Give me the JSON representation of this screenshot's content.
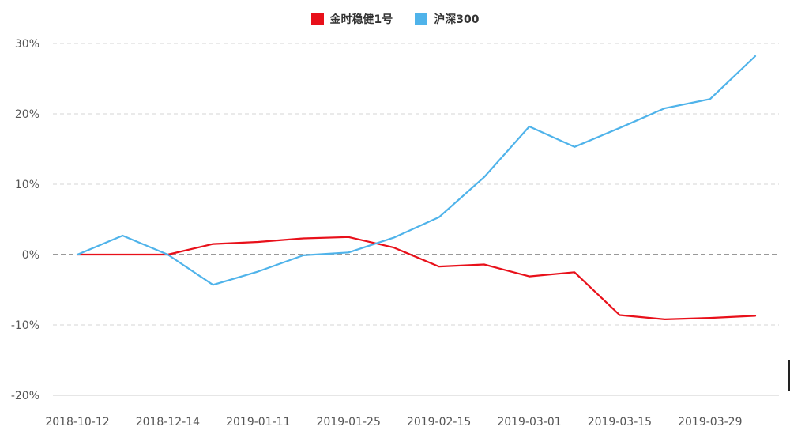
{
  "legend": {
    "items": [
      {
        "label": "金时稳健1号",
        "color": "#e8101a"
      },
      {
        "label": "沪深300",
        "color": "#4fb3ea"
      }
    ]
  },
  "chart_data": {
    "type": "line",
    "x": [
      "2018-10-12",
      "",
      "2018-12-14",
      "",
      "2019-01-11",
      "",
      "2019-01-25",
      "",
      "2019-02-15",
      "",
      "2019-03-01",
      "",
      "2019-03-15",
      "",
      "2019-03-29",
      ""
    ],
    "x_tick_labels": [
      "2018-10-12",
      "2018-12-14",
      "2019-01-11",
      "2019-01-25",
      "2019-02-15",
      "2019-03-01",
      "2019-03-15",
      "2019-03-29"
    ],
    "y_tick_labels": [
      "30%",
      "20%",
      "10%",
      "0%",
      "-10%",
      "-20%"
    ],
    "ylim": [
      -20,
      30
    ],
    "y_ticks": [
      30,
      20,
      10,
      0,
      -10,
      -20
    ],
    "grid": true,
    "legend_position": "top-center",
    "series": [
      {
        "name": "金时稳健1号",
        "color": "#e8101a",
        "values": [
          0,
          0,
          0,
          1.5,
          1.8,
          2.3,
          2.5,
          1.0,
          -1.7,
          -1.4,
          -3.1,
          -2.5,
          -8.6,
          -9.2,
          -9.0,
          -8.7
        ]
      },
      {
        "name": "沪深300",
        "color": "#4fb3ea",
        "values": [
          0,
          2.7,
          0,
          -4.3,
          -2.4,
          -0.1,
          0.3,
          2.4,
          5.3,
          11.0,
          18.2,
          15.3,
          18.0,
          20.8,
          22.1,
          28.2
        ]
      }
    ]
  }
}
